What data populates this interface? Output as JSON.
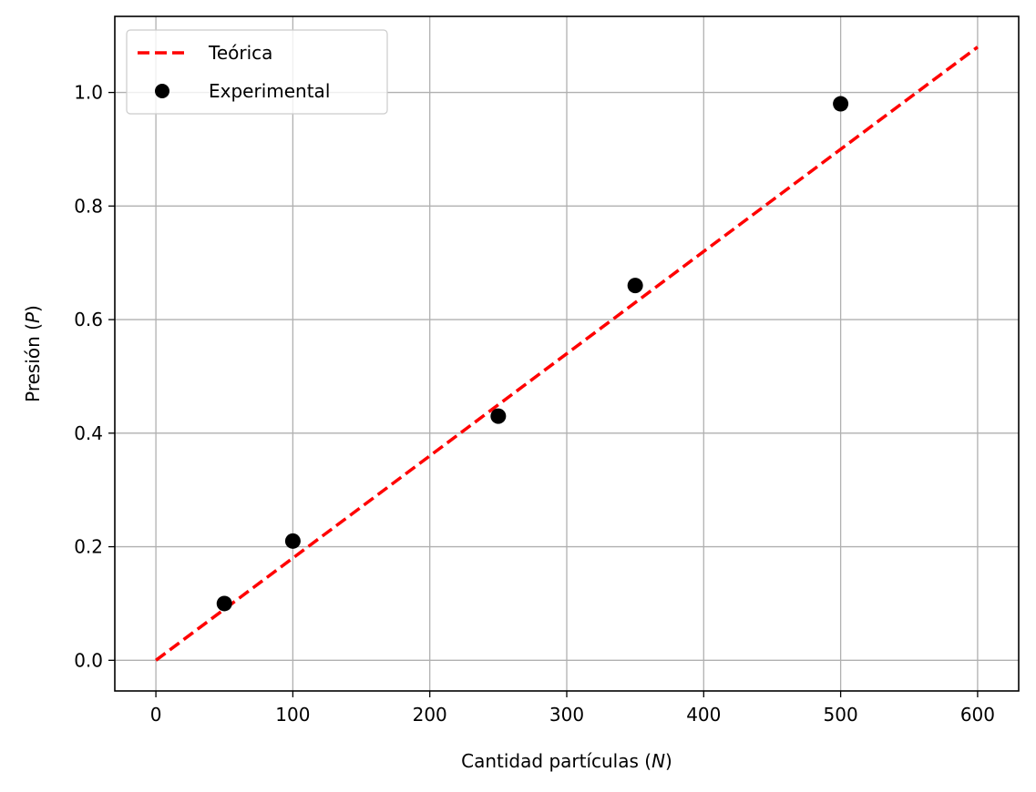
{
  "chart_data": {
    "type": "scatter",
    "xlabel": {
      "prefix": "Cantidad partículas (",
      "symbol": "N",
      "suffix": ")"
    },
    "ylabel": {
      "prefix": "Presión (",
      "symbol": "P",
      "suffix": ")"
    },
    "xlim": [
      -30,
      630
    ],
    "ylim": [
      -0.054,
      1.134
    ],
    "xticks": [
      0,
      100,
      200,
      300,
      400,
      500,
      600
    ],
    "yticks": [
      0.0,
      0.2,
      0.4,
      0.6,
      0.8,
      1.0
    ],
    "grid": true,
    "legend_position": "top-left",
    "series": [
      {
        "name": "Teórica",
        "kind": "line",
        "style": "dashed",
        "color": "#ff0000",
        "x": [
          0,
          600
        ],
        "y": [
          0.0,
          1.08
        ]
      },
      {
        "name": "Experimental",
        "kind": "scatter",
        "color": "#000000",
        "x": [
          50,
          100,
          250,
          350,
          500
        ],
        "y": [
          0.1,
          0.21,
          0.43,
          0.66,
          0.98
        ]
      }
    ]
  }
}
